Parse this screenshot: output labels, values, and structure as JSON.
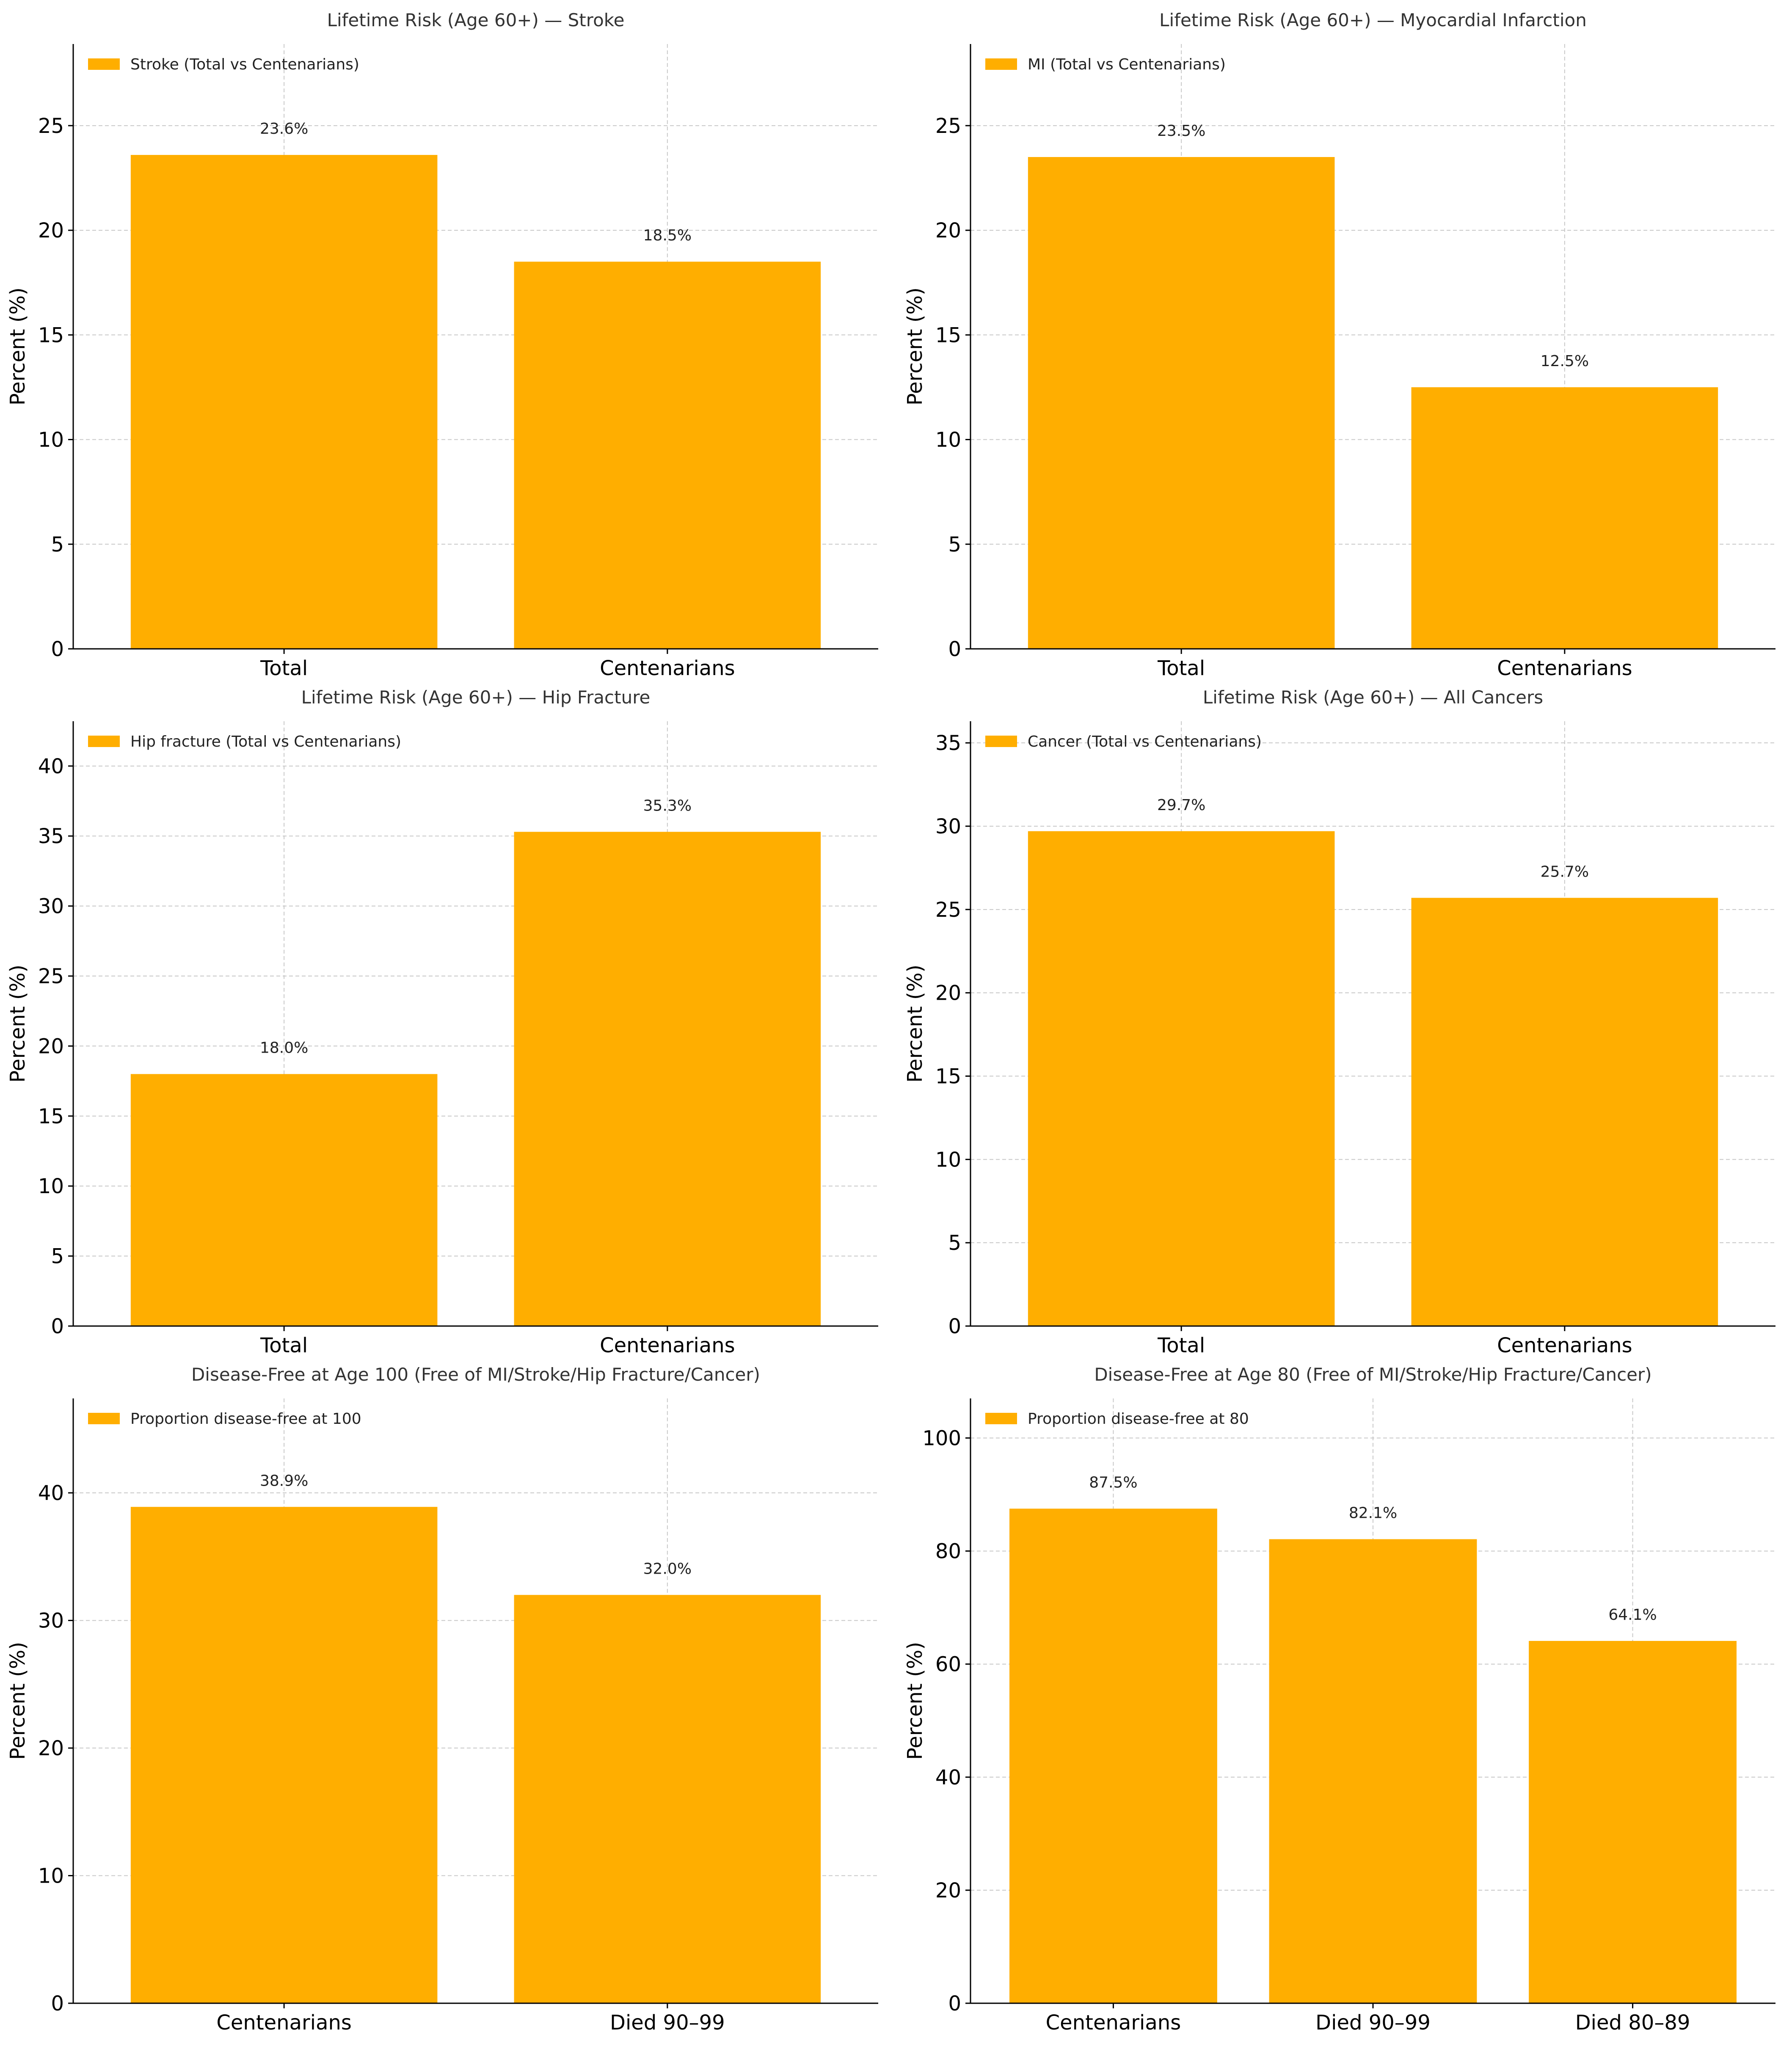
{
  "chart_data": [
    {
      "type": "bar",
      "title": "Lifetime Risk (Age 60+) — Stroke",
      "ylabel": "Percent (%)",
      "categories": [
        "Total",
        "Centenarians"
      ],
      "series": [
        {
          "name": "Stroke (Total vs Centenarians)",
          "values": [
            23.6,
            18.5
          ]
        }
      ],
      "data_labels": [
        "23.6%",
        "18.5%"
      ],
      "ylim": [
        0,
        28.9
      ],
      "yticks": [
        0,
        5,
        10,
        15,
        20,
        25
      ],
      "color": "#ffae00",
      "grid": true,
      "legend": "top-left"
    },
    {
      "type": "bar",
      "title": "Lifetime Risk (Age 60+) — Myocardial Infarction",
      "ylabel": "Percent (%)",
      "categories": [
        "Total",
        "Centenarians"
      ],
      "series": [
        {
          "name": "MI (Total vs Centenarians)",
          "values": [
            23.5,
            12.5
          ]
        }
      ],
      "data_labels": [
        "23.5%",
        "12.5%"
      ],
      "ylim": [
        0,
        28.9
      ],
      "yticks": [
        0,
        5,
        10,
        15,
        20,
        25
      ],
      "color": "#ffae00",
      "grid": true,
      "legend": "top-left"
    },
    {
      "type": "bar",
      "title": "Lifetime Risk (Age 60+) — Hip Fracture",
      "ylabel": "Percent (%)",
      "categories": [
        "Total",
        "Centenarians"
      ],
      "series": [
        {
          "name": "Hip fracture (Total vs Centenarians)",
          "values": [
            18.0,
            35.3
          ]
        }
      ],
      "data_labels": [
        "18.0%",
        "35.3%"
      ],
      "ylim": [
        0,
        43.2
      ],
      "yticks": [
        0,
        5,
        10,
        15,
        20,
        25,
        30,
        35,
        40
      ],
      "color": "#ffae00",
      "grid": true,
      "legend": "top-left"
    },
    {
      "type": "bar",
      "title": "Lifetime Risk (Age 60+) — All Cancers",
      "ylabel": "Percent (%)",
      "categories": [
        "Total",
        "Centenarians"
      ],
      "series": [
        {
          "name": "Cancer (Total vs Centenarians)",
          "values": [
            29.7,
            25.7
          ]
        }
      ],
      "data_labels": [
        "29.7%",
        "25.7%"
      ],
      "ylim": [
        0,
        36.3
      ],
      "yticks": [
        0,
        5,
        10,
        15,
        20,
        25,
        30,
        35
      ],
      "color": "#ffae00",
      "grid": true,
      "legend": "top-left"
    },
    {
      "type": "bar",
      "title": "Disease-Free at Age 100 (Free of MI/Stroke/Hip Fracture/Cancer)",
      "ylabel": "Percent (%)",
      "categories": [
        "Centenarians",
        "Died 90–99"
      ],
      "series": [
        {
          "name": "Proportion disease-free at 100",
          "values": [
            38.9,
            32.0
          ]
        }
      ],
      "data_labels": [
        "38.9%",
        "32.0%"
      ],
      "ylim": [
        0,
        47.4
      ],
      "yticks": [
        0,
        10,
        20,
        30,
        40
      ],
      "color": "#ffae00",
      "grid": true,
      "legend": "top-left"
    },
    {
      "type": "bar",
      "title": "Disease-Free at Age 80 (Free of MI/Stroke/Hip Fracture/Cancer)",
      "ylabel": "Percent (%)",
      "categories": [
        "Centenarians",
        "Died 90–99",
        "Died 80–89"
      ],
      "series": [
        {
          "name": "Proportion disease-free at 80",
          "values": [
            87.5,
            82.1,
            64.1
          ]
        }
      ],
      "data_labels": [
        "87.5%",
        "82.1%",
        "64.1%"
      ],
      "ylim": [
        0,
        107
      ],
      "yticks": [
        0,
        20,
        40,
        60,
        80,
        100
      ],
      "color": "#ffae00",
      "grid": true,
      "legend": "top-left"
    }
  ]
}
